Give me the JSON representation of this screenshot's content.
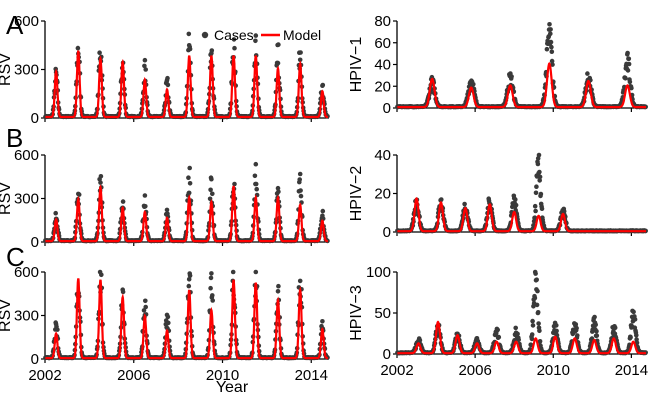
{
  "panel_labels": [
    "A",
    "B",
    "C"
  ],
  "legend": {
    "cases": "Cases",
    "model": "Model"
  },
  "xlabel": "Year",
  "colors": {
    "cases": "#3a3a3a",
    "model": "#ff0000",
    "axis": "#000000"
  },
  "chart_data": [
    {
      "id": "A-rsv",
      "type": "line",
      "ylabel": "RSV",
      "xlim": [
        2002,
        2014.8
      ],
      "ylim": [
        0,
        600
      ],
      "yticks": [
        "0",
        "300",
        "600"
      ],
      "xticks": [],
      "start_year": 2002.5,
      "period": 1.0,
      "model_peaks": [
        280,
        410,
        360,
        340,
        230,
        170,
        380,
        380,
        380,
        380,
        300,
        330,
        160
      ],
      "case_peaks": [
        250,
        420,
        420,
        320,
        280,
        200,
        430,
        430,
        440,
        440,
        370,
        390,
        180
      ],
      "width": 0.06
    },
    {
      "id": "A-hpiv1",
      "type": "line",
      "ylabel": "HPIV−1",
      "xlim": [
        2002,
        2014.8
      ],
      "ylim": [
        0,
        80
      ],
      "yticks": [
        "0",
        "20",
        "40",
        "60",
        "80"
      ],
      "xticks": [],
      "start_year": 2003.8,
      "period": 2.0,
      "model_peaks": [
        26,
        18,
        20,
        40,
        24,
        20
      ],
      "case_peaks": [
        22,
        24,
        26,
        65,
        26,
        40
      ],
      "width": 0.12
    },
    {
      "id": "B-rsv",
      "type": "line",
      "ylabel": "RSV",
      "xlim": [
        2002,
        2014.8
      ],
      "ylim": [
        0,
        600
      ],
      "yticks": [
        "0",
        "300",
        "600"
      ],
      "xticks": [],
      "start_year": 2002.5,
      "period": 1.0,
      "model_peaks": [
        150,
        290,
        370,
        230,
        200,
        160,
        300,
        270,
        380,
        300,
        300,
        250,
        140
      ],
      "case_peaks": [
        170,
        300,
        420,
        260,
        280,
        180,
        420,
        360,
        380,
        460,
        310,
        390,
        180
      ],
      "width": 0.06
    },
    {
      "id": "B-hpiv2",
      "type": "line",
      "ylabel": "HPIV−2",
      "xlim": [
        2002,
        2014.8
      ],
      "ylim": [
        0,
        40
      ],
      "yticks": [
        "0",
        "20",
        "40"
      ],
      "xticks": [],
      "start_year": 2003.0,
      "period": 1.25,
      "model_peaks": [
        17,
        15,
        12,
        14,
        10,
        8,
        9
      ],
      "case_peaks": [
        15,
        15,
        13,
        15,
        16,
        33,
        10
      ],
      "width": 0.1
    },
    {
      "id": "C-rsv",
      "type": "line",
      "ylabel": "RSV",
      "xlim": [
        2002,
        2014.8
      ],
      "ylim": [
        0,
        600
      ],
      "yticks": [
        "0",
        "300",
        "600"
      ],
      "xticks": [
        "2002",
        "2006",
        "2010",
        "2014"
      ],
      "start_year": 2002.5,
      "period": 1.0,
      "model_peaks": [
        170,
        550,
        540,
        420,
        290,
        190,
        470,
        330,
        540,
        520,
        400,
        470,
        200
      ],
      "case_peaks": [
        230,
        550,
        560,
        440,
        380,
        280,
        550,
        500,
        540,
        570,
        420,
        550,
        200
      ],
      "width": 0.06
    },
    {
      "id": "C-hpiv3",
      "type": "line",
      "ylabel": "HPIV−3",
      "xlim": [
        2002,
        2014.8
      ],
      "ylim": [
        0,
        100
      ],
      "yticks": [
        "0",
        "50",
        "100"
      ],
      "xticks": [
        "2002",
        "2006",
        "2010",
        "2014"
      ],
      "start_year": 2003.1,
      "period": 1.0,
      "model_peaks": [
        12,
        38,
        22,
        12,
        14,
        14,
        18,
        20,
        18,
        16,
        18,
        14
      ],
      "case_peaks": [
        15,
        30,
        20,
        15,
        25,
        25,
        90,
        30,
        35,
        35,
        30,
        45
      ],
      "width": 0.1
    }
  ]
}
